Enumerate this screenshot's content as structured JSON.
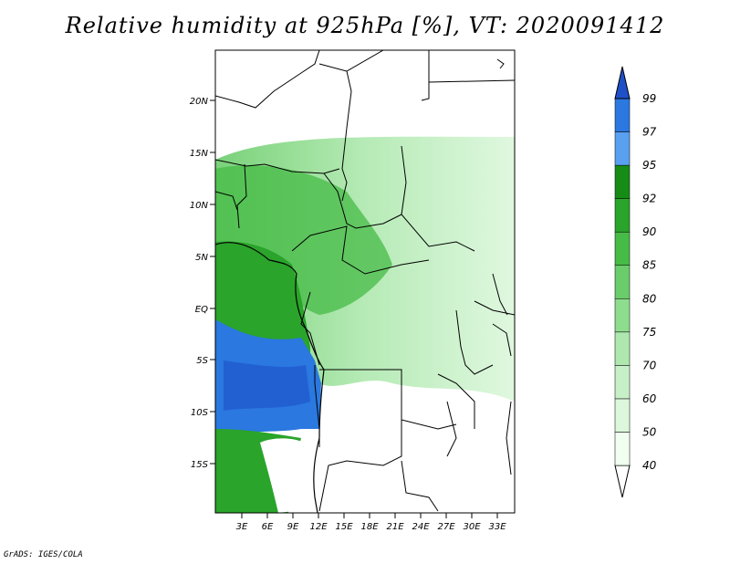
{
  "title": "Relative humidity at 925hPa [%], VT: 2020091412",
  "credit": "GrADS: IGES/COLA",
  "map": {
    "lat_labels": [
      "20N",
      "15N",
      "10N",
      "5N",
      "EQ",
      "5S",
      "10S",
      "15S"
    ],
    "lon_labels": [
      "3E",
      "6E",
      "9E",
      "12E",
      "15E",
      "18E",
      "21E",
      "24E",
      "27E",
      "30E",
      "33E"
    ]
  },
  "colorbar": {
    "levels": [
      "40",
      "50",
      "60",
      "70",
      "75",
      "80",
      "85",
      "90",
      "92",
      "95",
      "97",
      "99"
    ],
    "colors": [
      "#f0fff0",
      "#dcf7dc",
      "#c8f0c8",
      "#aee8ae",
      "#8edc8e",
      "#6acc6a",
      "#46bb46",
      "#2aa42a",
      "#168c16",
      "#5aa0f0",
      "#2a78e0",
      "#1e50c8"
    ]
  }
}
